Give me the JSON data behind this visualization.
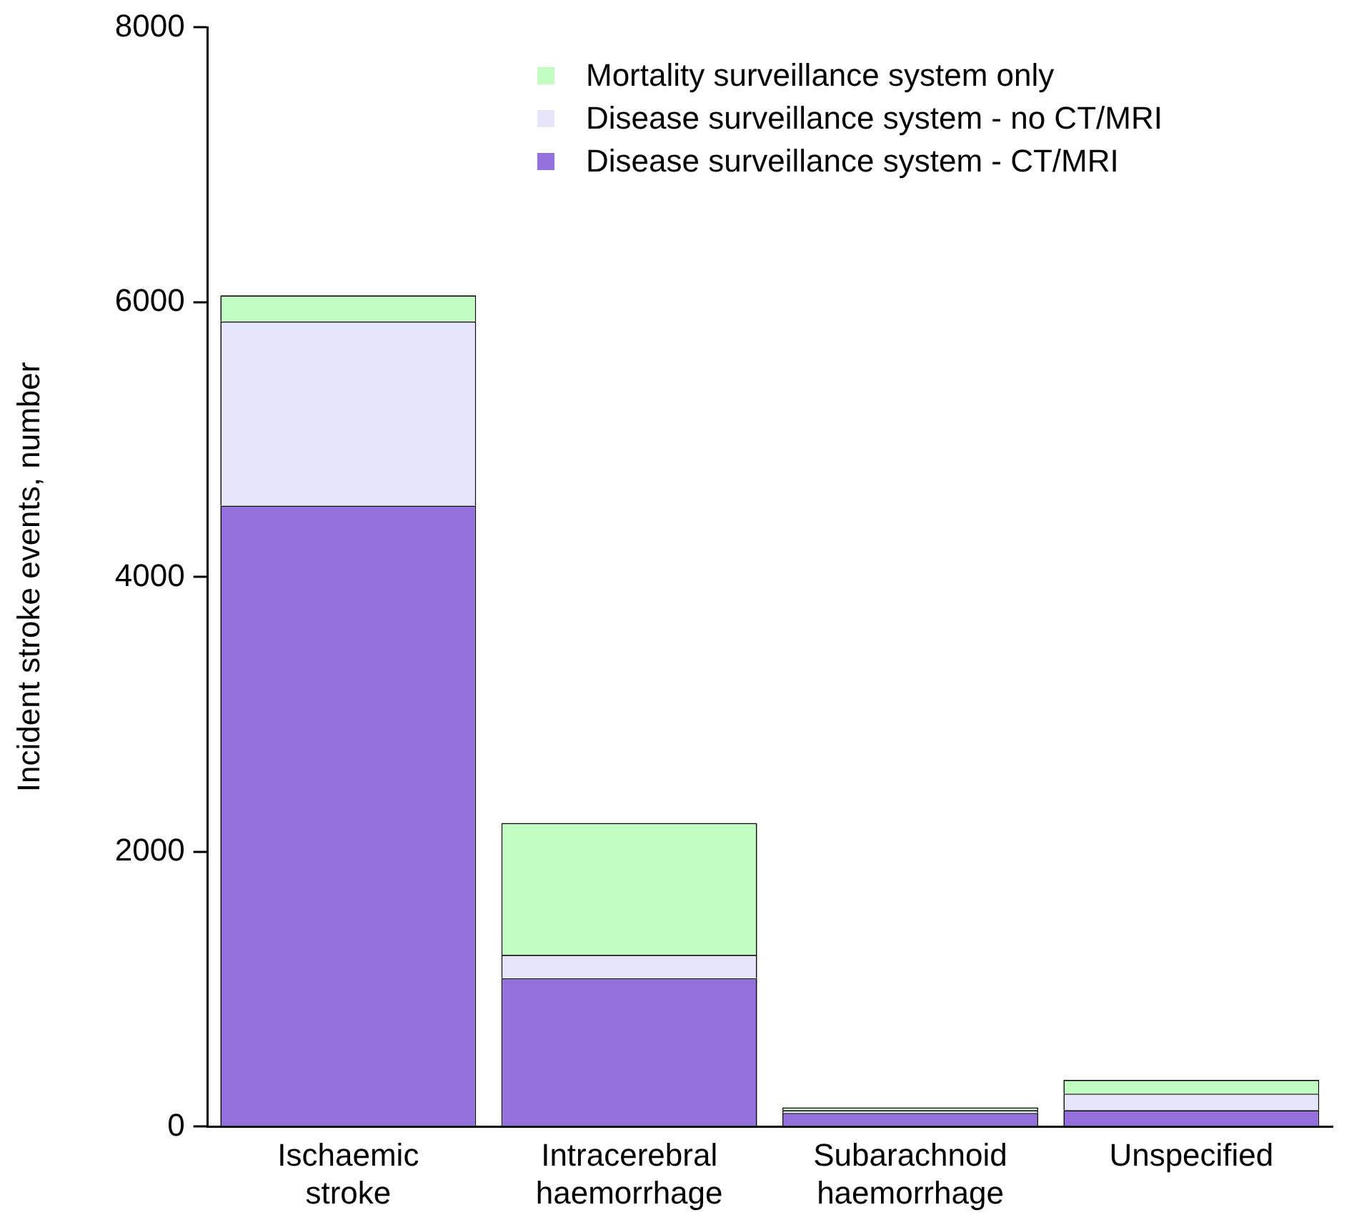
{
  "chart_data": {
    "type": "bar",
    "stacked": true,
    "ylabel": "Incident stroke events, number",
    "categories": [
      "Ischaemic stroke",
      "Intracerebral haemorrhage",
      "Subarachnoid haemorrhage",
      "Unspecified"
    ],
    "series": [
      {
        "name": "Disease surveillance system - CT/MRI",
        "color": "#9370db",
        "values": [
          4520,
          1080,
          100,
          120
        ]
      },
      {
        "name": "Disease surveillance system - no CT/MRI",
        "color": "#e4e5f8",
        "values": [
          1340,
          170,
          20,
          120
        ]
      },
      {
        "name": "Mortality surveillance system only",
        "color": "#c1fcc1",
        "values": [
          190,
          960,
          20,
          100
        ]
      }
    ],
    "ylim": [
      0,
      8000
    ],
    "yticks": [
      0,
      2000,
      4000,
      6000,
      8000
    ],
    "grid": false,
    "legend": "top right"
  }
}
